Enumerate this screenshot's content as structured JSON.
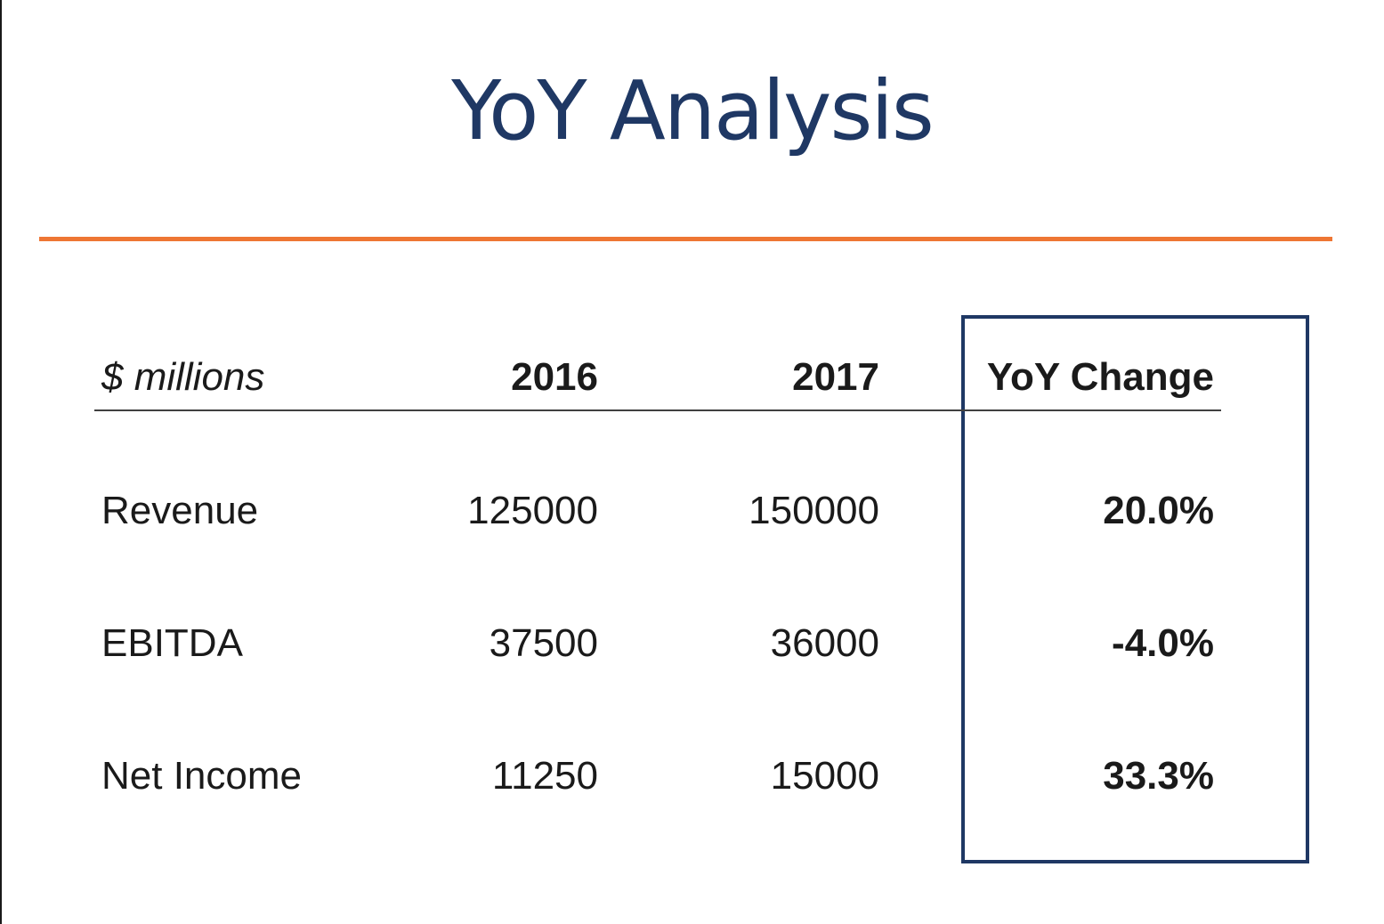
{
  "slide": {
    "title": "YoY Analysis",
    "accent_color": "#ee7634",
    "title_color": "#1f3864"
  },
  "table": {
    "headers": {
      "label": "$ millions",
      "col_2016": "2016",
      "col_2017": "2017",
      "col_yoy": "YoY Change"
    },
    "rows": [
      {
        "label": "Revenue",
        "y2016": "125000",
        "y2017": "150000",
        "yoy": "20.0%"
      },
      {
        "label": "EBITDA",
        "y2016": "37500",
        "y2017": "36000",
        "yoy": "-4.0%"
      },
      {
        "label": "Net Income",
        "y2016": "11250",
        "y2017": "15000",
        "yoy": "33.3%"
      }
    ]
  }
}
